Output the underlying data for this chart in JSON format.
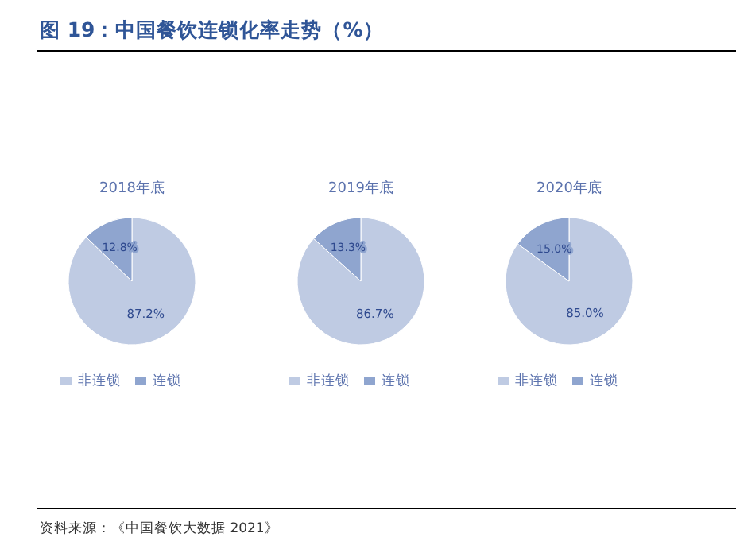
{
  "chart_data": [
    {
      "type": "pie",
      "title": "2018年底",
      "categories": [
        "非连锁",
        "连锁"
      ],
      "values": [
        87.2,
        12.8
      ],
      "colors": [
        "#bfcbe3",
        "#8fa5cf"
      ],
      "value_labels": [
        "87.2%",
        "12.8%"
      ],
      "legend": "bottom",
      "annotations": [
        "图 19：中国餐饮连锁化率走势（%）",
        "资料来源：《中国餐饮大数据 2021》"
      ]
    },
    {
      "type": "pie",
      "title": "2019年底",
      "categories": [
        "非连锁",
        "连锁"
      ],
      "values": [
        86.7,
        13.3
      ],
      "colors": [
        "#bfcbe3",
        "#8fa5cf"
      ],
      "value_labels": [
        "86.7%",
        "13.3%"
      ],
      "legend": "bottom"
    },
    {
      "type": "pie",
      "title": "2020年底",
      "categories": [
        "非连锁",
        "连锁"
      ],
      "values": [
        85.0,
        15.0
      ],
      "colors": [
        "#bfcbe3",
        "#8fa5cf"
      ],
      "value_labels": [
        "85.0%",
        "15.0%"
      ],
      "legend": "bottom"
    }
  ]
}
